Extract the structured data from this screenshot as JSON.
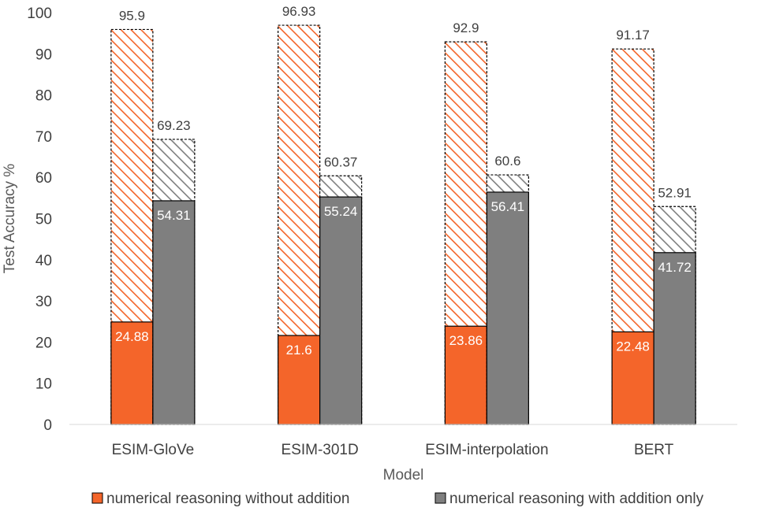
{
  "chart_data": {
    "type": "bar",
    "title": "",
    "xlabel": "Model",
    "ylabel": "Test Accuracy %",
    "ylim": [
      0,
      100
    ],
    "yticks": [
      0,
      10,
      20,
      30,
      40,
      50,
      60,
      70,
      80,
      90,
      100
    ],
    "categories": [
      "ESIM-GloVe",
      "ESIM-301D",
      "ESIM-interpolation",
      "BERT"
    ],
    "series": [
      {
        "name": "numerical reasoning without addition",
        "color": "#F4652A",
        "values": [
          24.88,
          21.6,
          23.86,
          22.48
        ],
        "overlay_values": [
          95.9,
          96.93,
          92.9,
          91.17
        ],
        "overlay_style": "hatched-dashed"
      },
      {
        "name": "numerical reasoning with addition only",
        "color": "#7F7F7F",
        "values": [
          54.31,
          55.24,
          56.41,
          41.72
        ],
        "overlay_values": [
          69.23,
          60.37,
          60.6,
          52.91
        ],
        "overlay_style": "hatched-dashed"
      }
    ],
    "value_labels": {
      "solid": [
        "24.88",
        "54.31",
        "21.6",
        "55.24",
        "23.86",
        "56.41",
        "22.48",
        "41.72"
      ],
      "overlay": [
        "95.9",
        "69.23",
        "96.93",
        "60.37",
        "92.9",
        "60.6",
        "91.17",
        "52.91"
      ]
    },
    "legend_position": "bottom",
    "grid": false
  }
}
